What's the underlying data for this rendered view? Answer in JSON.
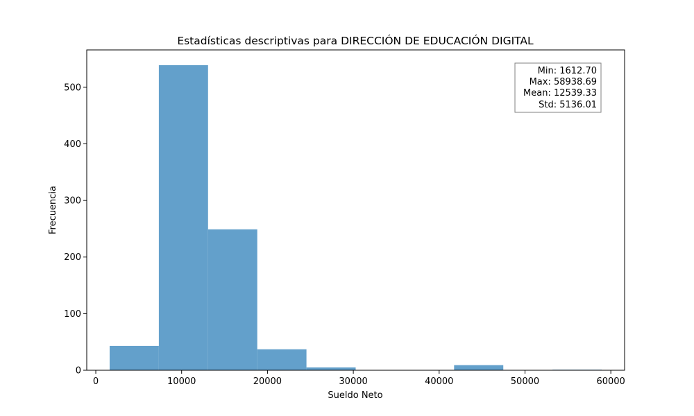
{
  "chart_data": {
    "type": "bar",
    "title": "Estadísticas descriptivas para DIRECCIÓN DE EDUCACIÓN DIGITAL",
    "xlabel": "Sueldo Neto",
    "ylabel": "Frecuencia",
    "xlim": [
      -1054,
      61605
    ],
    "ylim": [
      0,
      566
    ],
    "xticks": [
      0,
      10000,
      20000,
      30000,
      40000,
      50000,
      60000
    ],
    "xtick_labels": [
      "0",
      "10000",
      "20000",
      "30000",
      "40000",
      "50000",
      "60000"
    ],
    "yticks": [
      0,
      100,
      200,
      300,
      400,
      500
    ],
    "ytick_labels": [
      "0",
      "100",
      "200",
      "300",
      "400",
      "500"
    ],
    "bar_color": "#63a0cb",
    "bins": [
      {
        "start": 1612.7,
        "end": 7345.3,
        "count": 43
      },
      {
        "start": 7345.3,
        "end": 13077.9,
        "count": 539
      },
      {
        "start": 13077.9,
        "end": 18810.5,
        "count": 249
      },
      {
        "start": 18810.5,
        "end": 24543.1,
        "count": 37
      },
      {
        "start": 24543.1,
        "end": 30275.7,
        "count": 5
      },
      {
        "start": 30275.7,
        "end": 36008.3,
        "count": 0
      },
      {
        "start": 36008.3,
        "end": 41740.9,
        "count": 0
      },
      {
        "start": 41740.9,
        "end": 47473.5,
        "count": 9
      },
      {
        "start": 47473.5,
        "end": 53206.1,
        "count": 0
      },
      {
        "start": 53206.1,
        "end": 58938.69,
        "count": 1
      }
    ],
    "stats_box": {
      "min": "Min: 1612.70",
      "max": "Max: 58938.69",
      "mean": "Mean: 12539.33",
      "std": "Std: 5136.01"
    }
  }
}
